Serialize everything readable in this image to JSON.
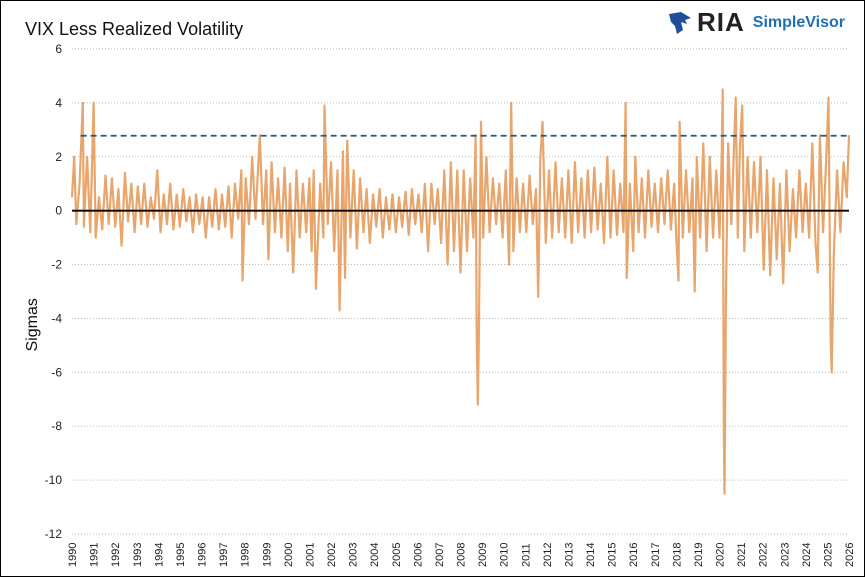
{
  "logo": {
    "brand": "RIA",
    "product": "SimpleVisor"
  },
  "chart_data": {
    "type": "line",
    "title": "VIX Less Realized Volatility",
    "xlabel": "",
    "ylabel": "Sigmas",
    "xlim": [
      1990,
      2026
    ],
    "ylim": [
      -12,
      6
    ],
    "yticks": [
      -12,
      -10,
      -8,
      -6,
      -4,
      -2,
      0,
      2,
      4,
      6
    ],
    "xticks": [
      1990,
      1991,
      1992,
      1993,
      1994,
      1995,
      1996,
      1997,
      1998,
      1999,
      2000,
      2001,
      2002,
      2003,
      2004,
      2005,
      2006,
      2007,
      2008,
      2009,
      2010,
      2011,
      2012,
      2013,
      2014,
      2015,
      2016,
      2017,
      2018,
      2019,
      2020,
      2021,
      2022,
      2023,
      2024,
      2025,
      2026
    ],
    "grid": "horizontal dotted",
    "series_color": "#e8a56c",
    "reference_lines": [
      {
        "value": 2.78,
        "style": "dashed",
        "color": "#1b5e7a"
      },
      {
        "value": 0,
        "style": "solid",
        "color": "#000000"
      }
    ],
    "points": [
      [
        1990.0,
        0.5
      ],
      [
        1990.1,
        2.0
      ],
      [
        1990.2,
        -0.5
      ],
      [
        1990.35,
        1.0
      ],
      [
        1990.5,
        4.0
      ],
      [
        1990.55,
        -0.6
      ],
      [
        1990.7,
        2.0
      ],
      [
        1990.85,
        -0.8
      ],
      [
        1991.0,
        4.0
      ],
      [
        1991.1,
        -1.0
      ],
      [
        1991.25,
        0.5
      ],
      [
        1991.4,
        -0.7
      ],
      [
        1991.55,
        1.3
      ],
      [
        1991.7,
        -0.5
      ],
      [
        1991.85,
        1.2
      ],
      [
        1992.0,
        -0.6
      ],
      [
        1992.15,
        0.8
      ],
      [
        1992.3,
        -1.3
      ],
      [
        1992.45,
        1.4
      ],
      [
        1992.6,
        -0.4
      ],
      [
        1992.75,
        1.0
      ],
      [
        1992.9,
        -0.8
      ],
      [
        1993.05,
        0.9
      ],
      [
        1993.2,
        -0.5
      ],
      [
        1993.35,
        1.0
      ],
      [
        1993.5,
        -0.6
      ],
      [
        1993.65,
        0.5
      ],
      [
        1993.8,
        -0.3
      ],
      [
        1993.95,
        1.5
      ],
      [
        1994.1,
        -0.8
      ],
      [
        1994.25,
        0.6
      ],
      [
        1994.4,
        -0.5
      ],
      [
        1994.55,
        1.0
      ],
      [
        1994.7,
        -0.7
      ],
      [
        1994.85,
        0.6
      ],
      [
        1995.0,
        -0.6
      ],
      [
        1995.15,
        0.8
      ],
      [
        1995.3,
        -0.4
      ],
      [
        1995.45,
        0.5
      ],
      [
        1995.6,
        -0.8
      ],
      [
        1995.75,
        0.6
      ],
      [
        1995.9,
        -0.5
      ],
      [
        1996.05,
        0.5
      ],
      [
        1996.2,
        -1.0
      ],
      [
        1996.35,
        0.5
      ],
      [
        1996.5,
        -0.6
      ],
      [
        1996.65,
        0.8
      ],
      [
        1996.8,
        -0.7
      ],
      [
        1996.95,
        0.6
      ],
      [
        1997.1,
        -0.6
      ],
      [
        1997.25,
        0.9
      ],
      [
        1997.4,
        -1.0
      ],
      [
        1997.55,
        1.0
      ],
      [
        1997.7,
        -0.3
      ],
      [
        1997.85,
        1.5
      ],
      [
        1997.9,
        -2.6
      ],
      [
        1998.05,
        1.2
      ],
      [
        1998.2,
        -0.5
      ],
      [
        1998.35,
        2.0
      ],
      [
        1998.5,
        -0.3
      ],
      [
        1998.7,
        2.8
      ],
      [
        1998.85,
        -0.5
      ],
      [
        1999.0,
        1.5
      ],
      [
        1999.1,
        -1.8
      ],
      [
        1999.25,
        1.8
      ],
      [
        1999.4,
        -0.8
      ],
      [
        1999.55,
        1.2
      ],
      [
        1999.7,
        -1.0
      ],
      [
        1999.85,
        1.6
      ],
      [
        2000.0,
        -1.5
      ],
      [
        2000.1,
        1.0
      ],
      [
        2000.25,
        -2.3
      ],
      [
        2000.4,
        1.5
      ],
      [
        2000.55,
        -1.0
      ],
      [
        2000.7,
        1.0
      ],
      [
        2000.85,
        -0.8
      ],
      [
        2001.0,
        1.2
      ],
      [
        2001.1,
        -1.5
      ],
      [
        2001.2,
        1.5
      ],
      [
        2001.3,
        -2.9
      ],
      [
        2001.5,
        1.0
      ],
      [
        2001.65,
        -1.0
      ],
      [
        2001.7,
        3.9
      ],
      [
        2001.85,
        -0.5
      ],
      [
        2002.0,
        1.8
      ],
      [
        2002.15,
        -1.5
      ],
      [
        2002.3,
        1.5
      ],
      [
        2002.4,
        -3.7
      ],
      [
        2002.55,
        2.2
      ],
      [
        2002.65,
        -2.5
      ],
      [
        2002.75,
        2.6
      ],
      [
        2002.9,
        -1.0
      ],
      [
        2003.05,
        1.5
      ],
      [
        2003.2,
        -1.4
      ],
      [
        2003.35,
        1.2
      ],
      [
        2003.5,
        -0.8
      ],
      [
        2003.65,
        0.8
      ],
      [
        2003.8,
        -1.2
      ],
      [
        2003.95,
        0.6
      ],
      [
        2004.1,
        -0.6
      ],
      [
        2004.25,
        0.8
      ],
      [
        2004.4,
        -1.0
      ],
      [
        2004.55,
        0.5
      ],
      [
        2004.7,
        -0.7
      ],
      [
        2004.85,
        0.6
      ],
      [
        2005.0,
        -0.8
      ],
      [
        2005.15,
        0.5
      ],
      [
        2005.3,
        -0.6
      ],
      [
        2005.45,
        0.7
      ],
      [
        2005.6,
        -0.9
      ],
      [
        2005.75,
        0.8
      ],
      [
        2005.9,
        -0.5
      ],
      [
        2006.05,
        0.6
      ],
      [
        2006.2,
        -0.8
      ],
      [
        2006.35,
        1.0
      ],
      [
        2006.5,
        -1.5
      ],
      [
        2006.65,
        1.0
      ],
      [
        2006.8,
        -0.5
      ],
      [
        2006.95,
        0.8
      ],
      [
        2007.1,
        -1.2
      ],
      [
        2007.25,
        1.5
      ],
      [
        2007.4,
        -2.0
      ],
      [
        2007.55,
        1.8
      ],
      [
        2007.7,
        -1.5
      ],
      [
        2007.85,
        1.5
      ],
      [
        2008.0,
        -2.3
      ],
      [
        2008.15,
        1.5
      ],
      [
        2008.3,
        -1.5
      ],
      [
        2008.45,
        1.2
      ],
      [
        2008.6,
        -1.0
      ],
      [
        2008.7,
        2.8
      ],
      [
        2008.75,
        -4.5
      ],
      [
        2008.8,
        -7.2
      ],
      [
        2008.85,
        -4.8
      ],
      [
        2008.95,
        3.3
      ],
      [
        2009.05,
        -1.0
      ],
      [
        2009.2,
        2.0
      ],
      [
        2009.35,
        -0.8
      ],
      [
        2009.5,
        1.2
      ],
      [
        2009.65,
        -0.5
      ],
      [
        2009.8,
        1.0
      ],
      [
        2009.95,
        -1.0
      ],
      [
        2010.1,
        1.5
      ],
      [
        2010.25,
        -2.0
      ],
      [
        2010.35,
        4.0
      ],
      [
        2010.45,
        -1.5
      ],
      [
        2010.6,
        1.2
      ],
      [
        2010.75,
        -0.8
      ],
      [
        2010.9,
        1.0
      ],
      [
        2011.05,
        -0.8
      ],
      [
        2011.2,
        1.3
      ],
      [
        2011.35,
        -0.5
      ],
      [
        2011.5,
        0.8
      ],
      [
        2011.6,
        -3.2
      ],
      [
        2011.7,
        2.0
      ],
      [
        2011.8,
        3.3
      ],
      [
        2011.95,
        -1.2
      ],
      [
        2012.1,
        1.5
      ],
      [
        2012.25,
        -1.0
      ],
      [
        2012.4,
        1.8
      ],
      [
        2012.55,
        -0.8
      ],
      [
        2012.7,
        1.2
      ],
      [
        2012.85,
        -1.0
      ],
      [
        2013.0,
        1.5
      ],
      [
        2013.15,
        -1.2
      ],
      [
        2013.3,
        1.8
      ],
      [
        2013.45,
        -0.8
      ],
      [
        2013.6,
        1.2
      ],
      [
        2013.75,
        -1.0
      ],
      [
        2013.9,
        1.5
      ],
      [
        2014.05,
        -0.8
      ],
      [
        2014.2,
        1.6
      ],
      [
        2014.35,
        -0.7
      ],
      [
        2014.5,
        1.0
      ],
      [
        2014.65,
        -1.2
      ],
      [
        2014.8,
        2.0
      ],
      [
        2014.95,
        -1.0
      ],
      [
        2015.1,
        1.5
      ],
      [
        2015.25,
        -0.9
      ],
      [
        2015.4,
        1.0
      ],
      [
        2015.55,
        -0.8
      ],
      [
        2015.65,
        4.0
      ],
      [
        2015.7,
        -2.5
      ],
      [
        2015.85,
        1.0
      ],
      [
        2016.0,
        -1.5
      ],
      [
        2016.1,
        2.0
      ],
      [
        2016.25,
        -0.8
      ],
      [
        2016.4,
        1.2
      ],
      [
        2016.55,
        -1.0
      ],
      [
        2016.7,
        1.5
      ],
      [
        2016.85,
        -0.6
      ],
      [
        2017.0,
        1.0
      ],
      [
        2017.15,
        -0.8
      ],
      [
        2017.3,
        1.2
      ],
      [
        2017.45,
        -0.5
      ],
      [
        2017.6,
        1.5
      ],
      [
        2017.75,
        -0.7
      ],
      [
        2017.9,
        1.0
      ],
      [
        2018.0,
        -1.0
      ],
      [
        2018.1,
        -2.6
      ],
      [
        2018.15,
        3.3
      ],
      [
        2018.3,
        -1.0
      ],
      [
        2018.45,
        1.5
      ],
      [
        2018.6,
        -0.8
      ],
      [
        2018.75,
        1.2
      ],
      [
        2018.85,
        -3.0
      ],
      [
        2018.95,
        2.0
      ],
      [
        2019.1,
        -1.0
      ],
      [
        2019.25,
        2.5
      ],
      [
        2019.4,
        -1.5
      ],
      [
        2019.55,
        2.0
      ],
      [
        2019.7,
        -1.0
      ],
      [
        2019.85,
        1.5
      ],
      [
        2020.0,
        -1.0
      ],
      [
        2020.1,
        2.0
      ],
      [
        2020.15,
        4.5
      ],
      [
        2020.2,
        -8.0
      ],
      [
        2020.23,
        -10.5
      ],
      [
        2020.3,
        -3.0
      ],
      [
        2020.4,
        2.5
      ],
      [
        2020.55,
        -0.5
      ],
      [
        2020.7,
        3.0
      ],
      [
        2020.75,
        4.2
      ],
      [
        2020.85,
        -1.0
      ],
      [
        2020.95,
        2.5
      ],
      [
        2021.05,
        3.9
      ],
      [
        2021.15,
        -1.5
      ],
      [
        2021.3,
        2.0
      ],
      [
        2021.45,
        -1.0
      ],
      [
        2021.6,
        1.8
      ],
      [
        2021.75,
        -0.8
      ],
      [
        2021.9,
        2.0
      ],
      [
        2022.05,
        -2.2
      ],
      [
        2022.2,
        1.5
      ],
      [
        2022.35,
        -2.4
      ],
      [
        2022.5,
        1.2
      ],
      [
        2022.65,
        -1.8
      ],
      [
        2022.8,
        1.0
      ],
      [
        2022.95,
        -2.7
      ],
      [
        2023.1,
        1.5
      ],
      [
        2023.25,
        -1.5
      ],
      [
        2023.4,
        0.8
      ],
      [
        2023.55,
        -1.0
      ],
      [
        2023.7,
        1.5
      ],
      [
        2023.85,
        -0.8
      ],
      [
        2024.0,
        1.0
      ],
      [
        2024.15,
        -1.0
      ],
      [
        2024.3,
        2.5
      ],
      [
        2024.45,
        -1.2
      ],
      [
        2024.55,
        -2.3
      ],
      [
        2024.65,
        2.8
      ],
      [
        2024.8,
        -0.8
      ],
      [
        2024.95,
        2.0
      ],
      [
        2025.05,
        4.2
      ],
      [
        2025.15,
        -4.8
      ],
      [
        2025.2,
        -6.0
      ],
      [
        2025.3,
        -1.5
      ],
      [
        2025.45,
        1.5
      ],
      [
        2025.6,
        -0.8
      ],
      [
        2025.75,
        1.8
      ],
      [
        2025.9,
        0.5
      ],
      [
        2026.0,
        2.8
      ]
    ]
  }
}
